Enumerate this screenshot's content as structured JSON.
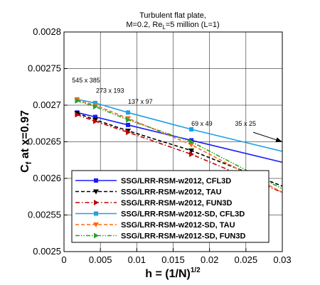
{
  "chart_data": {
    "type": "line",
    "title_line1": "Turbulent flat plate,",
    "title_line2_pre": "M=0.2, Re",
    "title_line2_sub": "L",
    "title_line2_post": "=5 million (L=1)",
    "ylabel_main": "C",
    "ylabel_sub": "f",
    "ylabel_rest": " at x=0.97",
    "xlabel": "h = (1/N)",
    "xlabel_sup": "1/2",
    "xlim": [
      0,
      0.03
    ],
    "ylim": [
      0.0025,
      0.0028
    ],
    "x_ticks": [
      0,
      0.005,
      0.01,
      0.015,
      0.02,
      0.025,
      0.03
    ],
    "x_tick_labels": [
      "0",
      "0.005",
      "0.01",
      "0.015",
      "0.02",
      "0.025",
      "0.03"
    ],
    "y_ticks": [
      0.0025,
      0.00255,
      0.0026,
      0.00265,
      0.0027,
      0.00275,
      0.0028
    ],
    "y_tick_labels": [
      "0.0025",
      "0.00255",
      "0.0026",
      "0.00265",
      "0.0027",
      "0.00275",
      "0.0028"
    ],
    "grid": true,
    "legend_position": "bottom-left",
    "annotations": [
      {
        "text": "545 x 385",
        "x": 0.0011,
        "y": 0.002731
      },
      {
        "text": "273 x 193",
        "x": 0.0044,
        "y": 0.002717
      },
      {
        "text": "137 x 97",
        "x": 0.0088,
        "y": 0.002702
      },
      {
        "text": "69 x 49",
        "x": 0.0175,
        "y": 0.002672
      },
      {
        "text": "35 x 25",
        "x": 0.0235,
        "y": 0.002672
      }
    ],
    "arrow": {
      "from": [
        0.026,
        0.002663
      ],
      "to": [
        0.03,
        0.00265
      ]
    },
    "series": [
      {
        "name": "SSG/LRR-RSM-w2012, CFL3D",
        "color": "#1a1aff",
        "dash": "solid",
        "marker": "square",
        "x": [
          0.0018,
          0.0043,
          0.0088,
          0.0175,
          0.035
        ],
        "y": [
          0.00269,
          0.002684,
          0.002673,
          0.002652,
          0.00261
        ]
      },
      {
        "name": "SSG/LRR-RSM-w2012, TAU",
        "color": "#000000",
        "dash": "dash",
        "marker": "triangle-down",
        "x": [
          0.0018,
          0.0043,
          0.0088,
          0.0175,
          0.035
        ],
        "y": [
          0.002689,
          0.00268,
          0.002665,
          0.002638,
          0.00257
        ]
      },
      {
        "name": "SSG/LRR-RSM-w2012, FUN3D",
        "color": "#c00000",
        "dash": "dashdot",
        "marker": "triangle-right",
        "x": [
          0.0018,
          0.0043,
          0.0088,
          0.0175,
          0.035
        ],
        "y": [
          0.002687,
          0.002678,
          0.002663,
          0.002633,
          0.00256
        ]
      },
      {
        "name": "SSG/LRR-RSM-w2012-SD, CFL3D",
        "color": "#1ea0e6",
        "dash": "solid",
        "marker": "square",
        "x": [
          0.0018,
          0.0043,
          0.0088,
          0.0175,
          0.035
        ],
        "y": [
          0.002708,
          0.002703,
          0.00269,
          0.002667,
          0.002625
        ]
      },
      {
        "name": "SSG/LRR-RSM-w2012-SD, TAU",
        "color": "#ff6a10",
        "dash": "dash",
        "marker": "triangle-down",
        "x": [
          0.0018,
          0.0043,
          0.0088,
          0.0175,
          0.035
        ],
        "y": [
          0.002707,
          0.0027,
          0.002682,
          0.002646,
          0.002555
        ]
      },
      {
        "name": "SSG/LRR-RSM-w2012-SD, FUN3D",
        "color": "#2ca02c",
        "dash": "dashdotdot",
        "marker": "triangle-right",
        "x": [
          0.0018,
          0.0043,
          0.0088,
          0.0175,
          0.035
        ],
        "y": [
          0.002706,
          0.002698,
          0.00268,
          0.00265,
          0.00256
        ]
      }
    ]
  }
}
